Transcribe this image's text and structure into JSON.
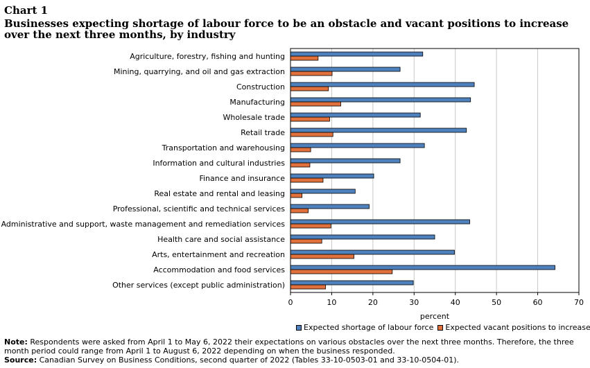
{
  "header": {
    "chart_label": "Chart 1",
    "title": "Businesses expecting shortage of labour force to be an obstacle and vacant positions to increase over the next three months, by industry"
  },
  "colors": {
    "series1": "#4f81bd",
    "series2": "#e0703c",
    "grid": "#c8c8c8"
  },
  "chart_data": {
    "type": "bar",
    "orientation": "horizontal",
    "categories": [
      "Agriculture, forestry, fishing and hunting",
      "Mining, quarrying, and oil and gas extraction",
      "Construction",
      "Manufacturing",
      "Wholesale trade",
      "Retail trade",
      "Transportation and warehousing",
      "Information and cultural industries",
      "Finance and insurance",
      "Real estate and rental and leasing",
      "Professional, scientific and technical services",
      "Administrative and support, waste management and remediation services",
      "Health care and social assistance",
      "Arts, entertainment and recreation",
      "Accommodation and food services",
      "Other services (except public administration)"
    ],
    "series": [
      {
        "name": "Expected shortage of labour force",
        "values": [
          32.1,
          26.6,
          44.6,
          43.7,
          31.5,
          42.7,
          32.5,
          26.6,
          20.2,
          15.7,
          19.1,
          43.5,
          35.0,
          39.8,
          64.2,
          29.8
        ]
      },
      {
        "name": "Expected vacant positions to increase",
        "values": [
          6.7,
          10.1,
          9.2,
          12.2,
          9.5,
          10.3,
          4.9,
          4.7,
          7.9,
          2.8,
          4.3,
          9.8,
          7.6,
          15.4,
          24.7,
          8.5
        ]
      }
    ],
    "xlabel": "percent",
    "xlim": [
      0,
      70
    ],
    "xticks": [
      "0",
      "10",
      "20",
      "30",
      "40",
      "50",
      "60",
      "70"
    ],
    "grid": true,
    "legend_position": "bottom"
  },
  "footer": {
    "note_label": "Note:",
    "note_text": " Respondents were asked from April 1 to May 6, 2022 their expectations on various obstacles over the next three months. Therefore, the three month period could range from April 1 to August 6, 2022 depending on when the business responded.",
    "source_label": "Source:",
    "source_text": " Canadian Survey on Business Conditions, second quarter of 2022 (Tables 33-10-0503-01 and 33-10-0504-01)."
  }
}
